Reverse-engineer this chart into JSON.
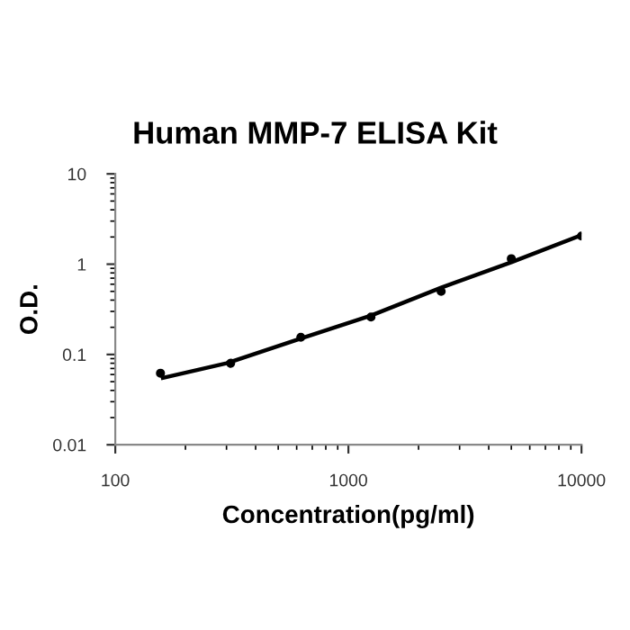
{
  "chart_data": {
    "type": "scatter",
    "title": "Human MMP-7 ELISA Kit",
    "xlabel": "Concentration(pg/ml)",
    "ylabel": "O.D.",
    "log": "xy",
    "xlim": [
      100,
      10000
    ],
    "xticks": [
      100,
      1000,
      10000
    ],
    "ylim": [
      0.01,
      10
    ],
    "yticks": [
      0.01,
      0.1,
      1,
      10
    ],
    "grid": false,
    "series": [
      {
        "marker": "circle",
        "color": "#000000",
        "x": [
          156.25,
          312.5,
          625,
          1250,
          2500,
          5000,
          10000
        ],
        "values": [
          0.062,
          0.08,
          0.155,
          0.26,
          0.5,
          1.15,
          2.05
        ]
      },
      {
        "type": "line",
        "marker": "none",
        "color": "#000000",
        "x": [
          160,
          300,
          625,
          1250,
          2500,
          5000,
          10000
        ],
        "values": [
          0.055,
          0.08,
          0.15,
          0.27,
          0.55,
          1.05,
          2.1
        ]
      }
    ]
  }
}
